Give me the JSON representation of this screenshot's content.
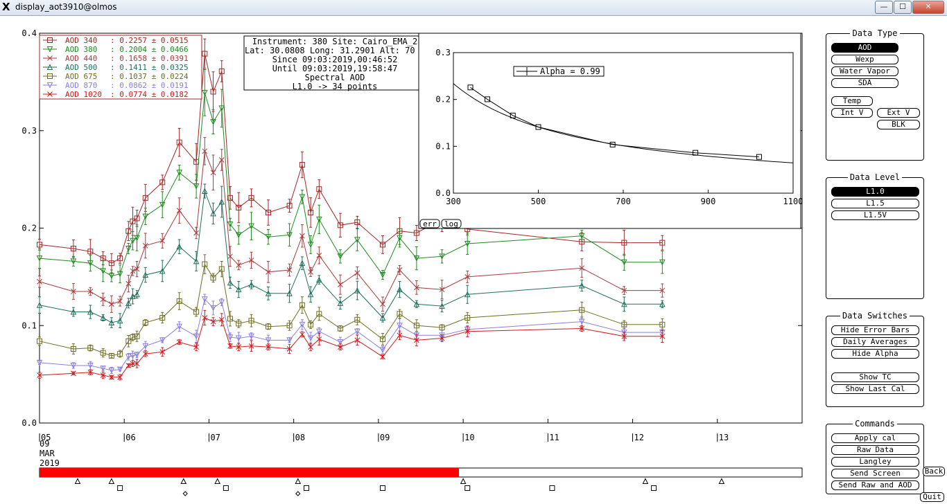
{
  "window": {
    "title": "display_aot3910@olmos",
    "minimize": "—",
    "maximize": "☐",
    "close": "✕"
  },
  "info_box": {
    "lines": [
      "Instrument: 380 Site: Cairo_EMA_2",
      "Lat: 30.0808 Long: 31.2901 Alt: 70 m",
      "Since 09:03:2019,00:46:52",
      "Until 09:03:2019,19:58:47",
      "Spectral AOD",
      "L1.0 -> 34 points"
    ]
  },
  "legend": [
    {
      "label": "AOD 340",
      "stat": ": 0.2257 ± 0.0515",
      "color": "#a42424",
      "marker": "square"
    },
    {
      "label": "AOD 380",
      "stat": ": 0.2004 ± 0.0466",
      "color": "#1e8a1e",
      "marker": "tri-down"
    },
    {
      "label": "AOD 440",
      "stat": ": 0.1658 ± 0.0391",
      "color": "#a83a3a",
      "marker": "x"
    },
    {
      "label": "AOD 500",
      "stat": ": 0.1411 ± 0.0325",
      "color": "#1e6e5a",
      "marker": "tri-up"
    },
    {
      "label": "AOD 675",
      "stat": ": 0.1037 ± 0.0224",
      "color": "#6e6e1e",
      "marker": "square"
    },
    {
      "label": "AOD 870",
      "stat": ": 0.0862 ± 0.0191",
      "color": "#8a7ee0",
      "marker": "tri-down"
    },
    {
      "label": "AOD 1020",
      "stat": ": 0.0774 ± 0.0182",
      "color": "#d01818",
      "marker": "x"
    }
  ],
  "main_chart": {
    "y_ticks": [
      "0.0",
      "0.1",
      "0.2",
      "0.3",
      "0.4"
    ],
    "ylim": [
      0,
      0.4
    ],
    "xlim": [
      5,
      14
    ],
    "x_ticks": [
      "05",
      "06",
      "07",
      "08",
      "09",
      "10",
      "11",
      "12",
      "13"
    ],
    "date_label": [
      "09",
      "MAR",
      "2019"
    ]
  },
  "spectral_chart": {
    "legend": "Alpha = 0.99",
    "x_ticks": [
      "300",
      "500",
      "700",
      "900",
      "1100"
    ],
    "y_ticks": [
      "0.0",
      "0.1",
      "0.2",
      "0.3"
    ],
    "xlim": [
      300,
      1100
    ],
    "ylim": [
      0,
      0.3
    ],
    "err_button": "err",
    "log_button": "log"
  },
  "chart_data": {
    "type": "line",
    "x": [
      5.0,
      5.4,
      5.6,
      5.75,
      5.85,
      5.95,
      6.05,
      6.1,
      6.15,
      6.25,
      6.45,
      6.65,
      6.85,
      6.95,
      7.05,
      7.15,
      7.25,
      7.35,
      7.5,
      7.7,
      7.95,
      8.1,
      8.2,
      8.3,
      8.55,
      8.75,
      9.05,
      9.25,
      9.45,
      9.75,
      10.05,
      11.4,
      11.9,
      12.35
    ],
    "series": [
      {
        "name": "AOD 340",
        "values": [
          0.183,
          0.179,
          0.176,
          0.169,
          0.164,
          0.169,
          0.197,
          0.207,
          0.21,
          0.231,
          0.247,
          0.288,
          0.268,
          0.379,
          0.34,
          0.361,
          0.231,
          0.221,
          0.231,
          0.216,
          0.223,
          0.265,
          0.216,
          0.24,
          0.203,
          0.206,
          0.183,
          0.197,
          0.195,
          0.209,
          0.199,
          0.186,
          0.185,
          0.185
        ]
      },
      {
        "name": "AOD 380",
        "values": [
          0.169,
          0.166,
          0.164,
          0.156,
          0.151,
          0.153,
          0.179,
          0.187,
          0.19,
          0.212,
          0.224,
          0.257,
          0.243,
          0.339,
          0.309,
          0.323,
          0.204,
          0.193,
          0.202,
          0.191,
          0.193,
          0.232,
          0.183,
          0.209,
          0.171,
          0.188,
          0.152,
          0.19,
          0.169,
          0.171,
          0.184,
          0.192,
          0.165,
          0.165
        ]
      },
      {
        "name": "AOD 440",
        "values": [
          0.145,
          0.135,
          0.135,
          0.127,
          0.122,
          0.125,
          0.143,
          0.156,
          0.158,
          0.182,
          0.187,
          0.218,
          0.195,
          0.279,
          0.257,
          0.27,
          0.171,
          0.162,
          0.167,
          0.155,
          0.157,
          0.192,
          0.155,
          0.172,
          0.142,
          0.154,
          0.122,
          0.157,
          0.139,
          0.137,
          0.15,
          0.159,
          0.136,
          0.136
        ]
      },
      {
        "name": "AOD 500",
        "values": [
          0.121,
          0.114,
          0.114,
          0.108,
          0.103,
          0.105,
          0.123,
          0.13,
          0.132,
          0.152,
          0.156,
          0.181,
          0.166,
          0.238,
          0.215,
          0.227,
          0.144,
          0.137,
          0.142,
          0.133,
          0.133,
          0.164,
          0.132,
          0.147,
          0.123,
          0.136,
          0.108,
          0.137,
          0.122,
          0.12,
          0.132,
          0.141,
          0.122,
          0.122
        ]
      },
      {
        "name": "AOD 675",
        "values": [
          0.084,
          0.076,
          0.077,
          0.072,
          0.069,
          0.071,
          0.084,
          0.088,
          0.089,
          0.103,
          0.108,
          0.125,
          0.114,
          0.163,
          0.149,
          0.158,
          0.107,
          0.102,
          0.105,
          0.099,
          0.1,
          0.121,
          0.101,
          0.112,
          0.097,
          0.106,
          0.086,
          0.112,
          0.1,
          0.098,
          0.108,
          0.116,
          0.101,
          0.101
        ]
      },
      {
        "name": "AOD 870",
        "values": [
          0.062,
          0.059,
          0.059,
          0.056,
          0.054,
          0.055,
          0.068,
          0.069,
          0.07,
          0.079,
          0.085,
          0.099,
          0.089,
          0.127,
          0.118,
          0.124,
          0.088,
          0.087,
          0.089,
          0.085,
          0.085,
          0.101,
          0.087,
          0.094,
          0.083,
          0.094,
          0.075,
          0.1,
          0.09,
          0.09,
          0.096,
          0.104,
          0.093,
          0.093
        ]
      },
      {
        "name": "AOD 1020",
        "values": [
          0.049,
          0.051,
          0.052,
          0.049,
          0.047,
          0.047,
          0.059,
          0.061,
          0.061,
          0.071,
          0.073,
          0.083,
          0.078,
          0.108,
          0.104,
          0.106,
          0.079,
          0.078,
          0.079,
          0.078,
          0.076,
          0.091,
          0.078,
          0.086,
          0.078,
          0.085,
          0.068,
          0.09,
          0.085,
          0.087,
          0.094,
          0.097,
          0.089,
          0.089
        ]
      }
    ],
    "spectral": {
      "wavelengths": [
        340,
        380,
        440,
        500,
        675,
        870,
        1020
      ],
      "aod": [
        0.2257,
        0.2004,
        0.1658,
        0.1411,
        0.1037,
        0.0862,
        0.0774
      ]
    },
    "progress": 0.55
  },
  "panels": {
    "data_type": {
      "title": "Data Type",
      "buttons": [
        "AOD",
        "Wexp",
        "Water Vapor",
        "SDA"
      ],
      "extra": {
        "temp": "Temp",
        "int_v": "Int V",
        "ext_v": "Ext V",
        "blk": "BLK"
      }
    },
    "data_level": {
      "title": "Data Level",
      "buttons": [
        "L1.0",
        "L1.5",
        "L1.5V"
      ]
    },
    "data_switches": {
      "title": "Data Switches",
      "buttons": [
        "Hide Error Bars",
        "Daily Averages",
        "Hide Alpha",
        "Show TC",
        "Show Last Cal"
      ]
    },
    "commands": {
      "title": "Commands",
      "buttons": [
        "Apply cal",
        "Raw Data",
        "Langley",
        "Send Screen",
        "Send Raw and AOD"
      ],
      "back": "Back",
      "quit": "Quit"
    }
  }
}
